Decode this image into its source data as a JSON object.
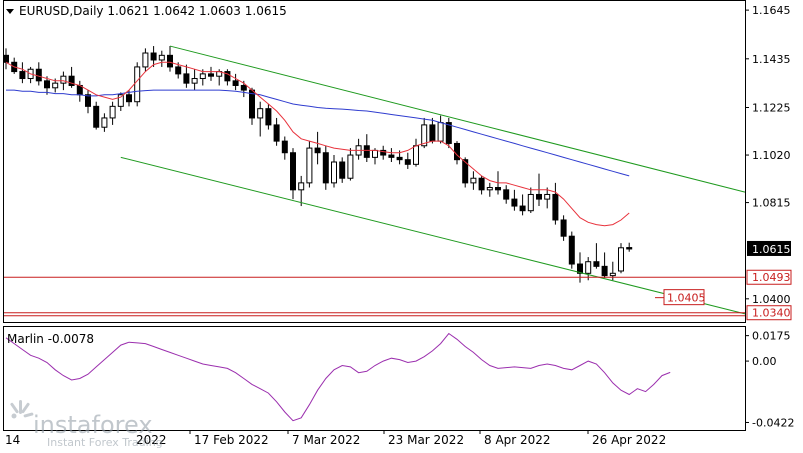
{
  "header": {
    "symbol_line": "EURUSD,Daily  1.0621  1.0642  1.0603  1.0615",
    "collapse_icon": "triangle-down-icon"
  },
  "watermark": {
    "brand": "instaforex",
    "tagline": "Instant Forex Trading"
  },
  "colors": {
    "up_candle": "#ffffff",
    "candle_outline": "#000000",
    "ma_fast": "#e8323c",
    "ma_slow": "#2f3ccf",
    "channel": "#1f9a1f",
    "level_line": "#c81e1e",
    "oscillator": "#9b2fae"
  },
  "chart_data": [
    {
      "type": "candlestick",
      "symbol": "EURUSD",
      "timeframe": "Daily",
      "ohlc_header": {
        "open": 1.0621,
        "high": 1.0642,
        "low": 1.0603,
        "close": 1.0615
      },
      "ylim": [
        1.03,
        1.168
      ],
      "y_ticks": [
        "1.1645",
        "1.1435",
        "1.1225",
        "1.1020",
        "1.0815",
        "1.0615",
        "1.0493",
        "1.0400",
        "1.0340"
      ],
      "x_ticks": [
        "17 Feb 2022",
        "7 Mar 2022",
        "23 Mar 2022",
        "8 Apr 2022",
        "26 Apr 2022"
      ],
      "x_ticks_partial": [
        "14",
        "2022"
      ],
      "current_price": "1.0615",
      "levels": [
        {
          "label": "1.0493",
          "value": 1.0493
        },
        {
          "label": "1.0405",
          "value": 1.0405
        },
        {
          "label": "1.0340",
          "value": 1.034
        }
      ],
      "candles": [
        [
          1.145,
          1.148,
          1.139,
          1.142
        ],
        [
          1.142,
          1.144,
          1.137,
          1.138
        ],
        [
          1.138,
          1.142,
          1.133,
          1.135
        ],
        [
          1.135,
          1.14,
          1.133,
          1.139
        ],
        [
          1.139,
          1.142,
          1.132,
          1.134
        ],
        [
          1.134,
          1.136,
          1.128,
          1.131
        ],
        [
          1.131,
          1.135,
          1.129,
          1.133
        ],
        [
          1.133,
          1.138,
          1.13,
          1.136
        ],
        [
          1.136,
          1.14,
          1.131,
          1.132
        ],
        [
          1.132,
          1.134,
          1.125,
          1.128
        ],
        [
          1.128,
          1.13,
          1.12,
          1.123
        ],
        [
          1.123,
          1.125,
          1.113,
          1.114
        ],
        [
          1.114,
          1.12,
          1.112,
          1.118
        ],
        [
          1.118,
          1.125,
          1.115,
          1.123
        ],
        [
          1.123,
          1.129,
          1.121,
          1.128
        ],
        [
          1.128,
          1.13,
          1.123,
          1.125
        ],
        [
          1.125,
          1.142,
          1.123,
          1.14
        ],
        [
          1.14,
          1.148,
          1.138,
          1.146
        ],
        [
          1.146,
          1.149,
          1.14,
          1.143
        ],
        [
          1.143,
          1.147,
          1.14,
          1.145
        ],
        [
          1.145,
          1.149,
          1.138,
          1.14
        ],
        [
          1.14,
          1.142,
          1.135,
          1.137
        ],
        [
          1.137,
          1.141,
          1.131,
          1.133
        ],
        [
          1.133,
          1.139,
          1.13,
          1.135
        ],
        [
          1.135,
          1.139,
          1.132,
          1.137
        ],
        [
          1.137,
          1.14,
          1.134,
          1.136
        ],
        [
          1.136,
          1.139,
          1.132,
          1.138
        ],
        [
          1.138,
          1.139,
          1.132,
          1.134
        ],
        [
          1.134,
          1.137,
          1.13,
          1.132
        ],
        [
          1.132,
          1.134,
          1.127,
          1.13
        ],
        [
          1.13,
          1.131,
          1.115,
          1.118
        ],
        [
          1.118,
          1.125,
          1.11,
          1.122
        ],
        [
          1.122,
          1.124,
          1.113,
          1.115
        ],
        [
          1.115,
          1.118,
          1.106,
          1.108
        ],
        [
          1.108,
          1.11,
          1.1,
          1.103
        ],
        [
          1.103,
          1.105,
          1.083,
          1.087
        ],
        [
          1.087,
          1.093,
          1.08,
          1.09
        ],
        [
          1.09,
          1.108,
          1.088,
          1.105
        ],
        [
          1.105,
          1.112,
          1.098,
          1.103
        ],
        [
          1.103,
          1.106,
          1.087,
          1.09
        ],
        [
          1.09,
          1.102,
          1.088,
          1.099
        ],
        [
          1.099,
          1.101,
          1.09,
          1.092
        ],
        [
          1.092,
          1.105,
          1.091,
          1.102
        ],
        [
          1.102,
          1.109,
          1.1,
          1.106
        ],
        [
          1.106,
          1.111,
          1.099,
          1.101
        ],
        [
          1.101,
          1.105,
          1.098,
          1.104
        ],
        [
          1.104,
          1.106,
          1.1,
          1.102
        ],
        [
          1.102,
          1.105,
          1.099,
          1.101
        ],
        [
          1.101,
          1.104,
          1.098,
          1.1
        ],
        [
          1.1,
          1.103,
          1.096,
          1.098
        ],
        [
          1.098,
          1.109,
          1.097,
          1.106
        ],
        [
          1.106,
          1.118,
          1.105,
          1.115
        ],
        [
          1.115,
          1.118,
          1.107,
          1.108
        ],
        [
          1.108,
          1.119,
          1.107,
          1.116
        ],
        [
          1.116,
          1.118,
          1.105,
          1.107
        ],
        [
          1.107,
          1.108,
          1.098,
          1.1
        ],
        [
          1.1,
          1.101,
          1.088,
          1.09
        ],
        [
          1.09,
          1.095,
          1.087,
          1.092
        ],
        [
          1.092,
          1.093,
          1.085,
          1.087
        ],
        [
          1.087,
          1.09,
          1.084,
          1.088
        ],
        [
          1.088,
          1.095,
          1.085,
          1.087
        ],
        [
          1.087,
          1.089,
          1.081,
          1.083
        ],
        [
          1.083,
          1.087,
          1.078,
          1.08
        ],
        [
          1.08,
          1.085,
          1.076,
          1.078
        ],
        [
          1.078,
          1.088,
          1.077,
          1.085
        ],
        [
          1.085,
          1.094,
          1.08,
          1.083
        ],
        [
          1.083,
          1.088,
          1.079,
          1.085
        ],
        [
          1.085,
          1.09,
          1.072,
          1.074
        ],
        [
          1.074,
          1.076,
          1.065,
          1.067
        ],
        [
          1.067,
          1.069,
          1.053,
          1.055
        ],
        [
          1.055,
          1.06,
          1.047,
          1.051
        ],
        [
          1.051,
          1.058,
          1.048,
          1.056
        ],
        [
          1.056,
          1.064,
          1.053,
          1.054
        ],
        [
          1.054,
          1.06,
          1.049,
          1.05
        ],
        [
          1.05,
          1.056,
          1.048,
          1.051
        ],
        [
          1.052,
          1.064,
          1.051,
          1.062
        ],
        [
          1.0621,
          1.0642,
          1.0603,
          1.0615
        ]
      ],
      "ma_fast": [
        1.142,
        1.14,
        1.139,
        1.137,
        1.136,
        1.135,
        1.134,
        1.134,
        1.133,
        1.132,
        1.13,
        1.128,
        1.127,
        1.126,
        1.127,
        1.13,
        1.134,
        1.138,
        1.141,
        1.142,
        1.142,
        1.141,
        1.14,
        1.139,
        1.138,
        1.138,
        1.138,
        1.137,
        1.135,
        1.133,
        1.13,
        1.127,
        1.124,
        1.121,
        1.117,
        1.112,
        1.109,
        1.108,
        1.107,
        1.106,
        1.105,
        1.1045,
        1.104,
        1.104,
        1.104,
        1.104,
        1.1035,
        1.103,
        1.103,
        1.104,
        1.106,
        1.107,
        1.108,
        1.108,
        1.106,
        1.102,
        1.099,
        1.096,
        1.093,
        1.091,
        1.09,
        1.09,
        1.089,
        1.088,
        1.087,
        1.087,
        1.087,
        1.086,
        1.083,
        1.079,
        1.075,
        1.073,
        1.072,
        1.0715,
        1.072,
        1.074,
        1.077
      ],
      "ma_slow": [
        1.13,
        1.13,
        1.1295,
        1.1295,
        1.129,
        1.129,
        1.1285,
        1.1285,
        1.128,
        1.128,
        1.1275,
        1.1275,
        1.128,
        1.128,
        1.1285,
        1.129,
        1.1295,
        1.1298,
        1.13,
        1.13,
        1.13,
        1.13,
        1.13,
        1.13,
        1.13,
        1.13,
        1.13,
        1.1298,
        1.1295,
        1.129,
        1.1285,
        1.128,
        1.127,
        1.126,
        1.125,
        1.124,
        1.1235,
        1.123,
        1.1225,
        1.1222,
        1.122,
        1.1218,
        1.1215,
        1.1212,
        1.121,
        1.1205,
        1.12,
        1.1195,
        1.119,
        1.1185,
        1.118,
        1.1175,
        1.117,
        1.116,
        1.115,
        1.114,
        1.113,
        1.112,
        1.111,
        1.11,
        1.109,
        1.108,
        1.107,
        1.106,
        1.105,
        1.104,
        1.103,
        1.102,
        1.101,
        1.1,
        1.099,
        1.098,
        1.097,
        1.096,
        1.095,
        1.094,
        1.093
      ],
      "channel_upper": [
        [
          20,
          1.149
        ],
        [
          98,
          1.086
        ]
      ],
      "channel_lower": [
        [
          14,
          1.101
        ],
        [
          98,
          1.0335
        ]
      ]
    },
    {
      "type": "line",
      "name": "Marlin",
      "value_label": "Marlin -0.0078",
      "ylim": [
        -0.046,
        0.02
      ],
      "y_ticks": [
        "0.0175",
        "0.00",
        "-0.0422"
      ],
      "values": [
        0.016,
        0.012,
        0.008,
        0.004,
        0.002,
        -0.001,
        -0.006,
        -0.01,
        -0.013,
        -0.012,
        -0.009,
        -0.004,
        0.001,
        0.006,
        0.011,
        0.013,
        0.0125,
        0.012,
        0.01,
        0.008,
        0.006,
        0.004,
        0.002,
        0.0,
        -0.002,
        -0.003,
        -0.004,
        -0.005,
        -0.008,
        -0.012,
        -0.016,
        -0.019,
        -0.022,
        -0.028,
        -0.035,
        -0.041,
        -0.039,
        -0.03,
        -0.02,
        -0.012,
        -0.006,
        -0.003,
        -0.004,
        -0.008,
        -0.007,
        -0.003,
        0.0,
        0.002,
        0.001,
        -0.001,
        0.0,
        0.003,
        0.007,
        0.012,
        0.019,
        0.015,
        0.01,
        0.006,
        0.001,
        -0.003,
        -0.005,
        -0.0045,
        -0.004,
        -0.0045,
        -0.005,
        -0.003,
        -0.002,
        -0.003,
        -0.005,
        -0.006,
        -0.003,
        0.0,
        -0.002,
        -0.008,
        -0.015,
        -0.02,
        -0.023,
        -0.019,
        -0.021,
        -0.016,
        -0.01,
        -0.0078
      ]
    }
  ]
}
